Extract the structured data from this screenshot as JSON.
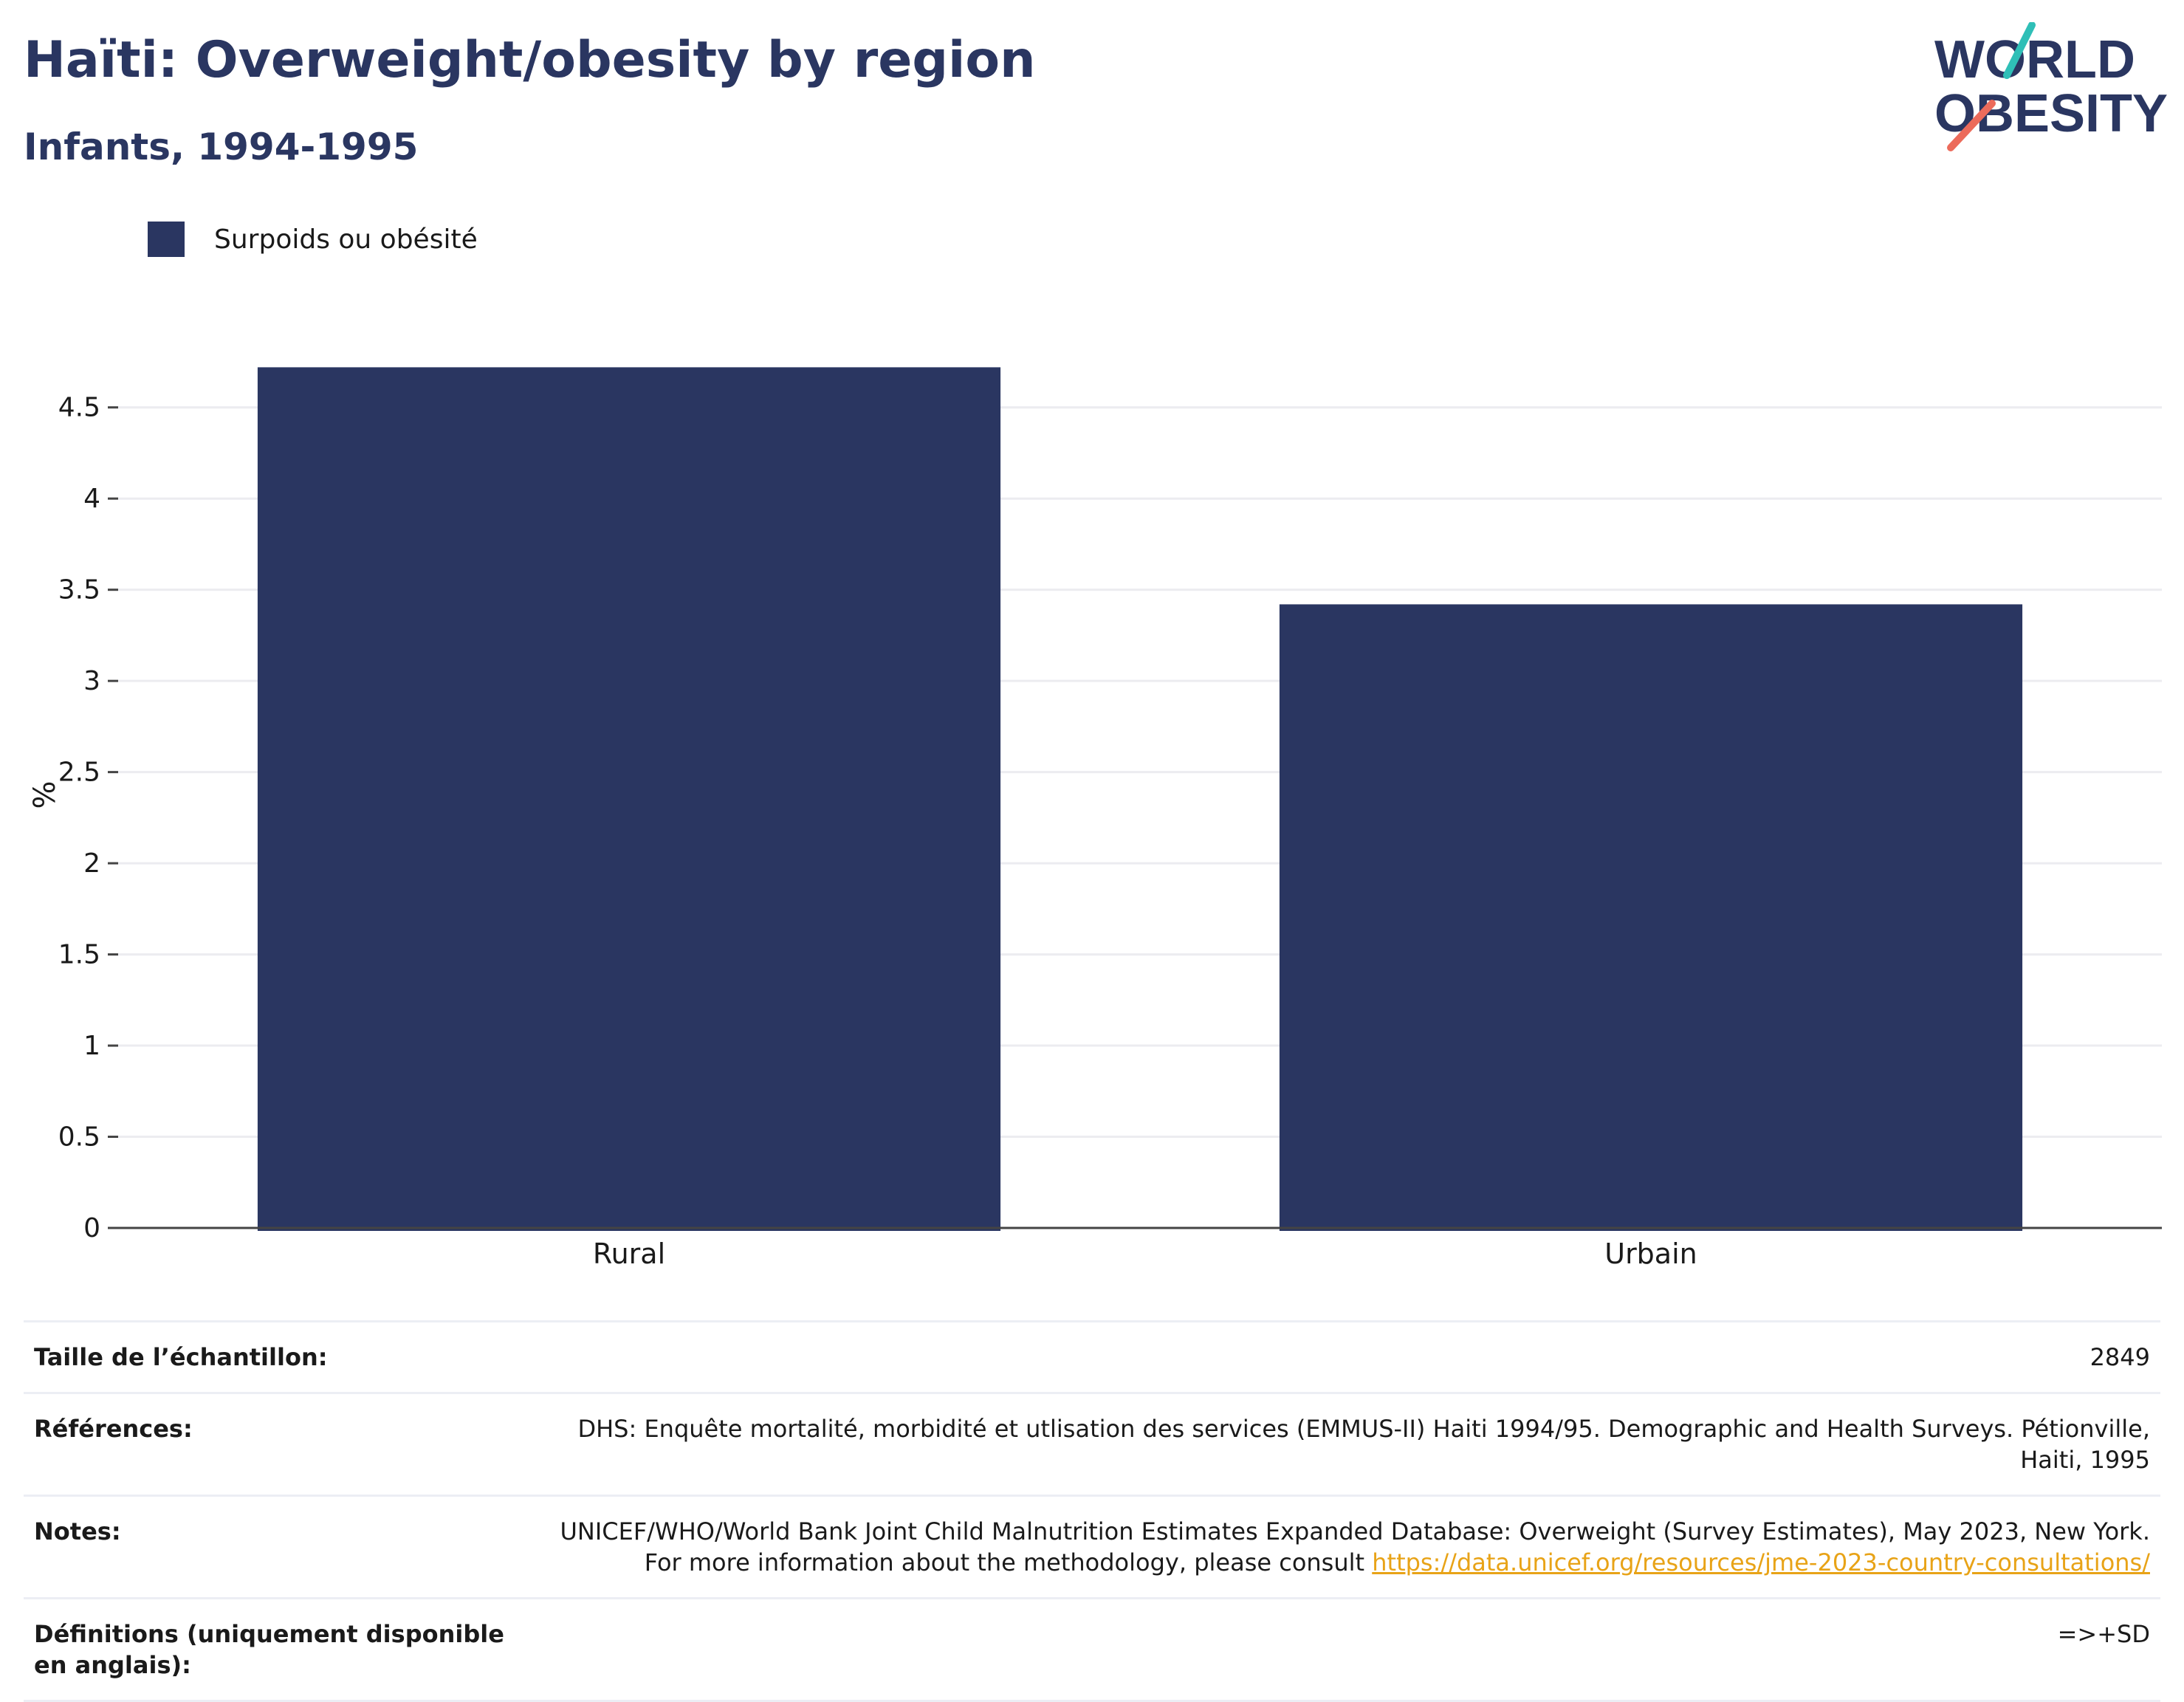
{
  "header": {
    "title": "Haïti: Overweight/obesity by region",
    "subtitle": "Infants, 1994-1995"
  },
  "logo": {
    "line1": "WORLD",
    "line2": "OBESITY"
  },
  "legend": {
    "label": "Surpoids ou obésité",
    "color": "#2a3661"
  },
  "chart_data": {
    "type": "bar",
    "categories": [
      "Rural",
      "Urbain"
    ],
    "series": [
      {
        "name": "Surpoids ou obésité",
        "values": [
          4.72,
          3.42
        ]
      }
    ],
    "ylabel": "%",
    "ylim": [
      0,
      4.75
    ],
    "yticks": [
      0,
      0.5,
      1,
      1.5,
      2,
      2.5,
      3,
      3.5,
      4,
      4.5
    ],
    "ytick_labels": [
      "0",
      "0.5",
      "1",
      "1.5",
      "2",
      "2.5",
      "3",
      "3.5",
      "4",
      "4.5"
    ],
    "grid": true,
    "bar_color": "#2a3661"
  },
  "info": {
    "sample_label": "Taille de l’échantillon:",
    "sample_value": "2849",
    "references_label": "Références:",
    "references_value": "DHS: Enquête mortalité, morbidité et utlisation des services (EMMUS-II) Haiti 1994/95. Demographic and Health Surveys. Pétionville, Haiti, 1995",
    "notes_label": "Notes:",
    "notes_text": "UNICEF/WHO/World Bank Joint Child Malnutrition Estimates Expanded Database: Overweight (Survey Estimates), May 2023, New York. For more information about the methodology, please consult ",
    "notes_link": "https://data.unicef.org/resources/jme-2023-country-consultations/",
    "definitions_label": "Définitions (uniquement disponible en anglais):",
    "definitions_value": "=>+SD"
  }
}
